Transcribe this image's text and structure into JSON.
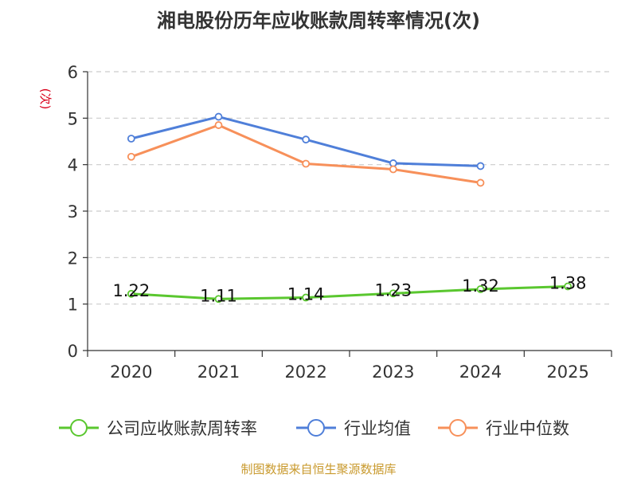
{
  "chart_data": {
    "type": "line",
    "title": "湘电股份历年应收账款周转率情况(次)",
    "ylabel": "(次)",
    "xlabel": "",
    "categories": [
      "2020",
      "2021",
      "2022",
      "2023",
      "2024",
      "2025"
    ],
    "ylim": [
      0,
      6
    ],
    "yticks": [
      0,
      1,
      2,
      3,
      4,
      5,
      6
    ],
    "grid": true,
    "legend_position": "bottom",
    "series": [
      {
        "name": "公司应收账款周转率",
        "color": "#5ac72f",
        "values": [
          1.22,
          1.11,
          1.14,
          1.23,
          1.32,
          1.38
        ],
        "labels": [
          "1.22",
          "1.11",
          "1.14",
          "1.23",
          "1.32",
          "1.38"
        ]
      },
      {
        "name": "行业均值",
        "color": "#4f7fd9",
        "values": [
          4.56,
          5.03,
          4.54,
          4.03,
          3.97,
          null
        ]
      },
      {
        "name": "行业中位数",
        "color": "#f7905a",
        "values": [
          4.17,
          4.85,
          4.02,
          3.9,
          3.61,
          null
        ]
      }
    ],
    "source": "制图数据来自恒生聚源数据库"
  }
}
